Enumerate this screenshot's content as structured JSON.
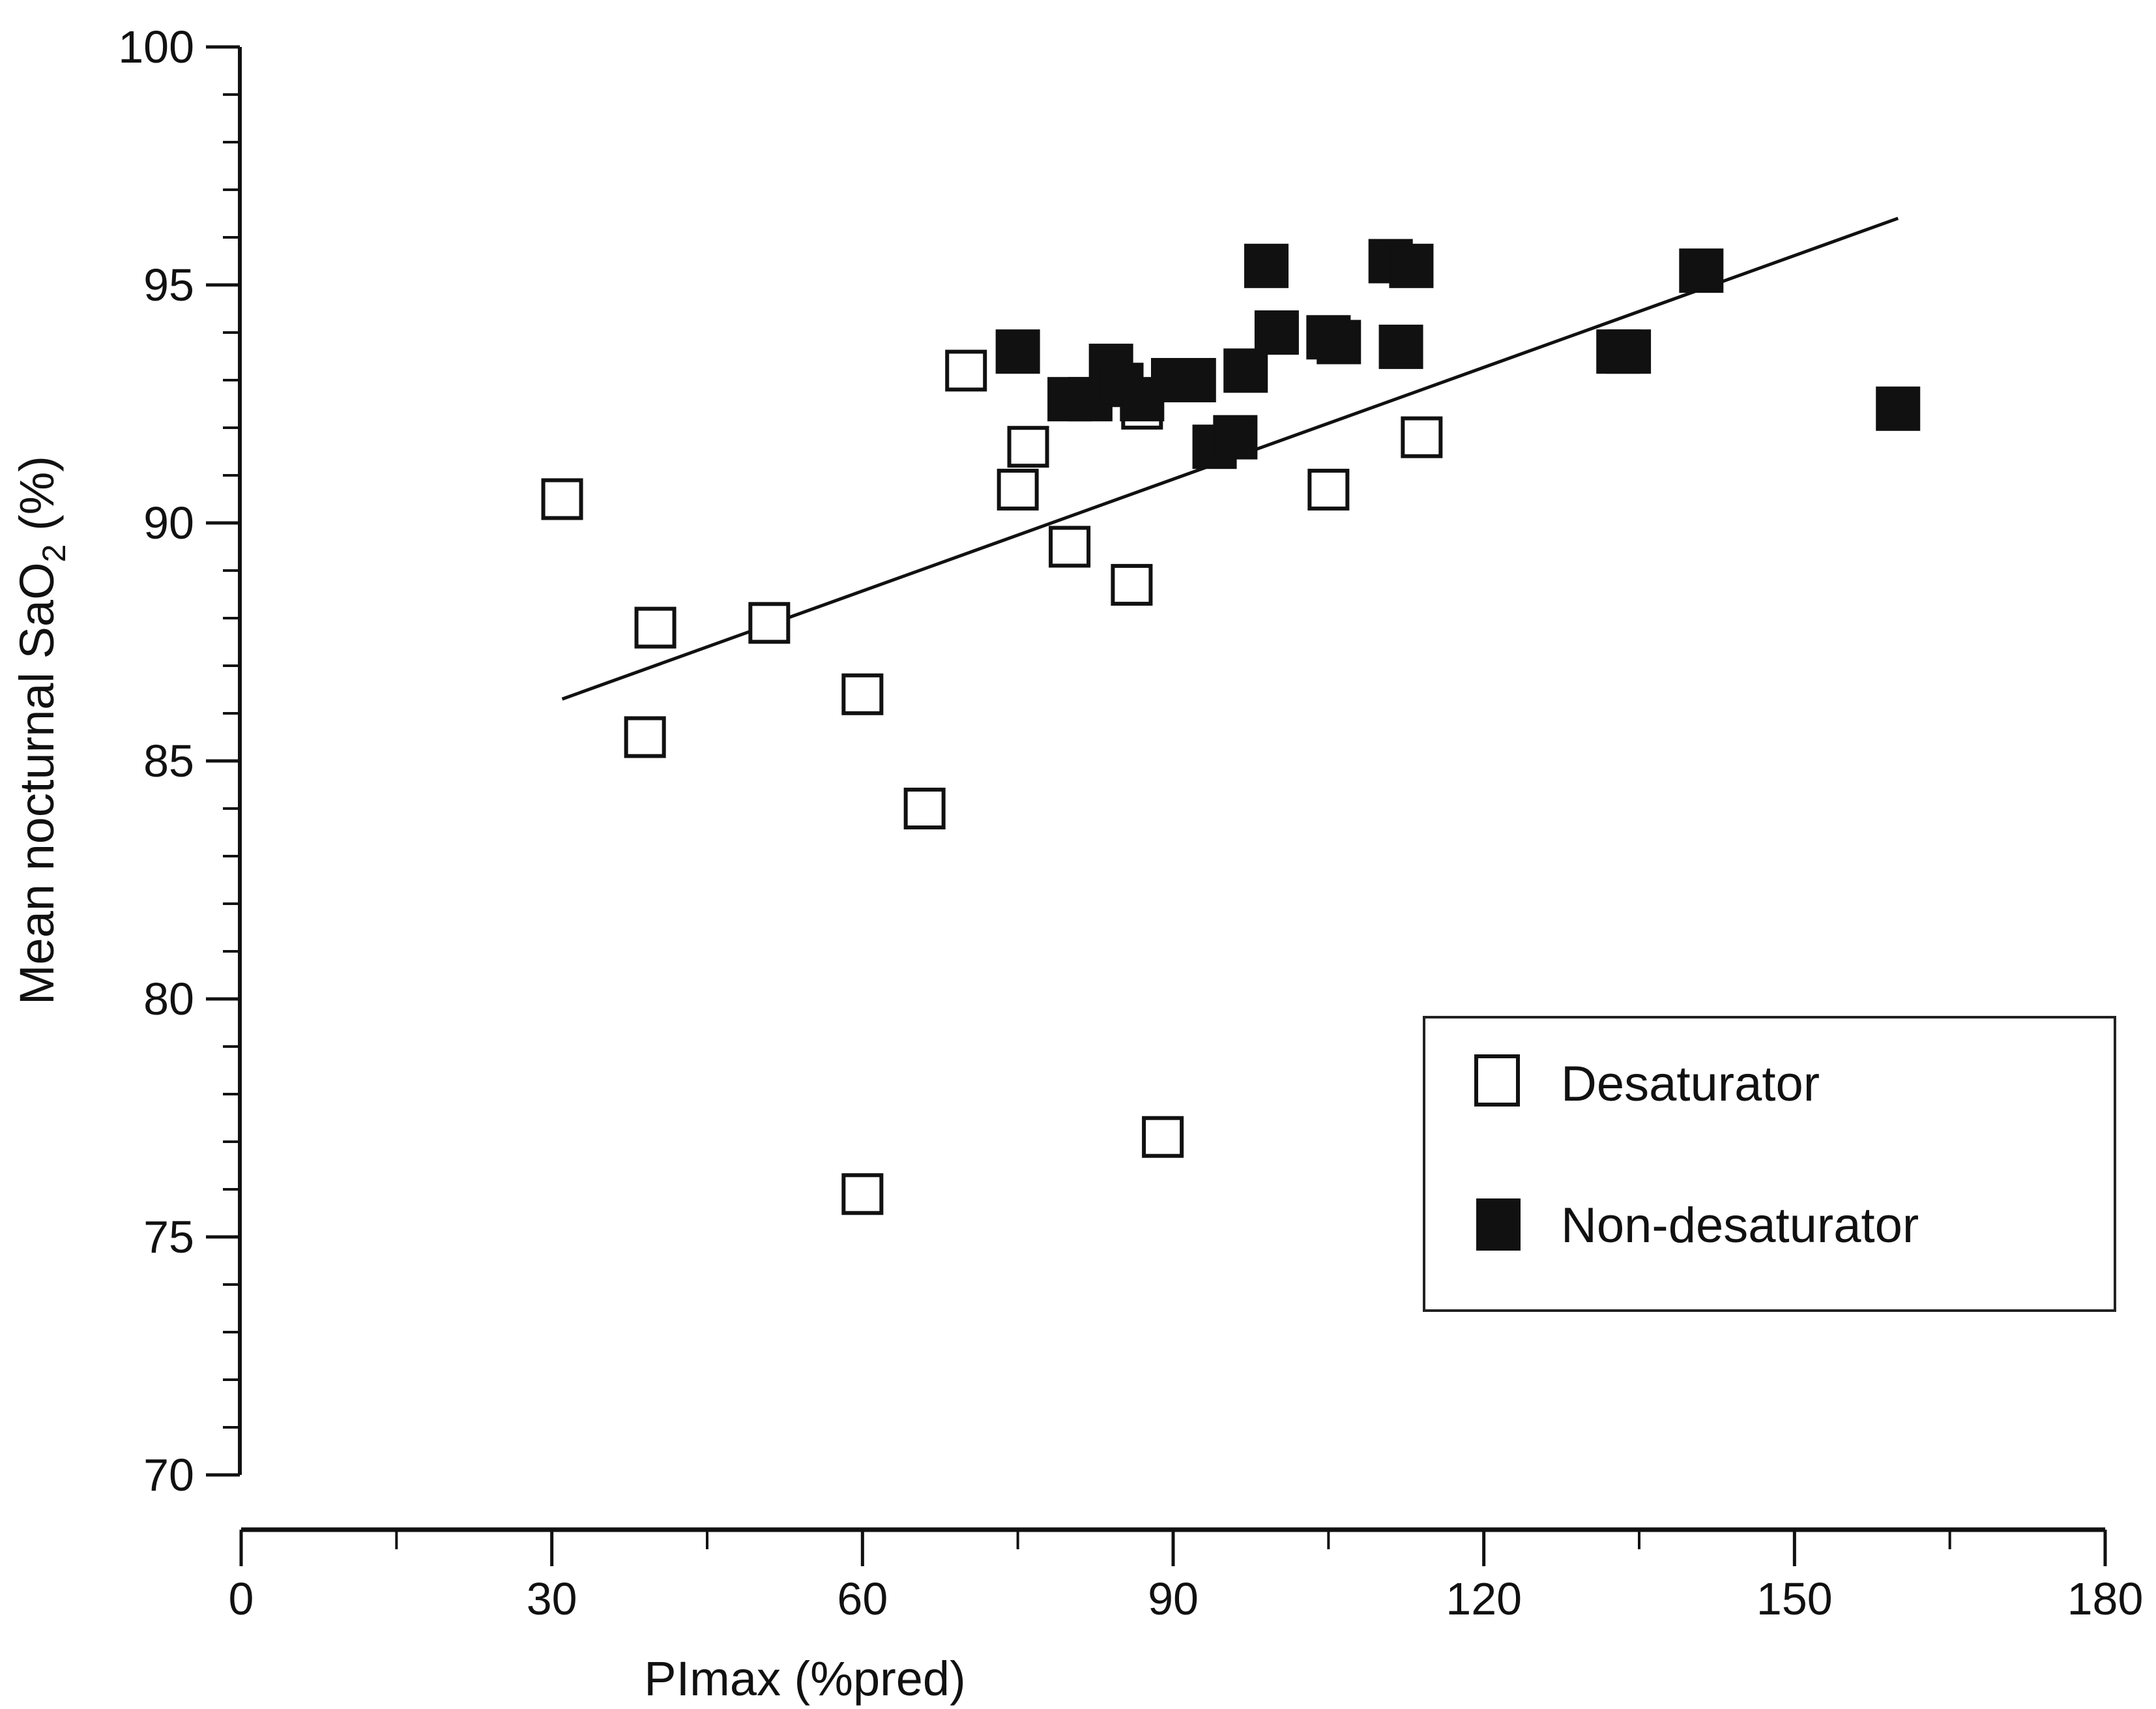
{
  "chart_data": {
    "type": "scatter",
    "title": "",
    "xlabel": "PImax (%pred)",
    "ylabel_main": "Mean nocturnal SaO",
    "ylabel_sub": "2",
    "ylabel_suffix": " (%)",
    "xlim": [
      0,
      180
    ],
    "ylim": [
      70,
      100
    ],
    "xticks": [
      0,
      30,
      60,
      90,
      120,
      150,
      180
    ],
    "yticks": [
      70,
      75,
      80,
      85,
      90,
      95,
      100
    ],
    "xtick_labels": [
      "0",
      "30",
      "60",
      "90",
      "120",
      "150",
      "180"
    ],
    "ytick_labels": [
      "70",
      "75",
      "80",
      "85",
      "90",
      "95",
      "100"
    ],
    "grid": false,
    "legend_position": "bottom-right",
    "series": [
      {
        "name": "Desaturator",
        "marker": "open-square",
        "color": "#111111",
        "points": [
          [
            31,
            90.5
          ],
          [
            39,
            85.5
          ],
          [
            40,
            87.8
          ],
          [
            51,
            87.9
          ],
          [
            60,
            86.4
          ],
          [
            60,
            75.9
          ],
          [
            66,
            84.0
          ],
          [
            70,
            93.2
          ],
          [
            75,
            90.7
          ],
          [
            76,
            91.6
          ],
          [
            80,
            89.5
          ],
          [
            86,
            88.7
          ],
          [
            87,
            92.4
          ],
          [
            89,
            77.1
          ],
          [
            105,
            90.7
          ],
          [
            114,
            91.8
          ]
        ]
      },
      {
        "name": "Non-desaturator",
        "marker": "filled-square",
        "color": "#111111",
        "points": [
          [
            75,
            93.6
          ],
          [
            80,
            92.6
          ],
          [
            82,
            92.6
          ],
          [
            84,
            93.3
          ],
          [
            85,
            92.9
          ],
          [
            87,
            92.6
          ],
          [
            90,
            93.0
          ],
          [
            92,
            93.0
          ],
          [
            94,
            91.6
          ],
          [
            96,
            91.8
          ],
          [
            97,
            93.2
          ],
          [
            99,
            95.4
          ],
          [
            100,
            94.0
          ],
          [
            105,
            93.9
          ],
          [
            106,
            93.8
          ],
          [
            111,
            95.5
          ],
          [
            112,
            93.7
          ],
          [
            113,
            95.4
          ],
          [
            133,
            93.6
          ],
          [
            134,
            93.6
          ],
          [
            141,
            95.3
          ],
          [
            160,
            92.4
          ]
        ]
      }
    ],
    "regression_line": {
      "x": [
        31,
        160
      ],
      "y": [
        86.3,
        96.4
      ]
    }
  }
}
